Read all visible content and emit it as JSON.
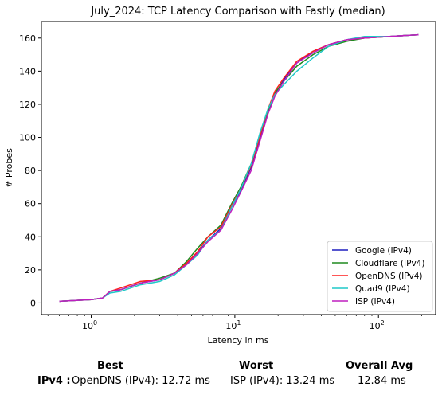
{
  "chart_data": {
    "type": "line",
    "title": "July_2024: TCP Latency Comparison with Fastly (median)",
    "xlabel": "Latency in ms",
    "ylabel": "# Probes",
    "xscale": "log",
    "xlim": [
      0.45,
      250
    ],
    "ylim": [
      -7,
      170
    ],
    "xticks": [
      {
        "value": 1,
        "label": "10^0"
      },
      {
        "value": 10,
        "label": "10^1"
      },
      {
        "value": 100,
        "label": "10^2"
      }
    ],
    "yticks": [
      0,
      20,
      40,
      60,
      80,
      100,
      120,
      140,
      160
    ],
    "grid": false,
    "legend_position": "lower-right",
    "series": [
      {
        "name": "Google (IPv4)",
        "color": "#1f1fbf",
        "points": [
          [
            0.6,
            1
          ],
          [
            1.0,
            2
          ],
          [
            1.2,
            3
          ],
          [
            1.35,
            7
          ],
          [
            1.6,
            8
          ],
          [
            2.2,
            12
          ],
          [
            3.0,
            14
          ],
          [
            3.8,
            18
          ],
          [
            4.6,
            24
          ],
          [
            5.5,
            30
          ],
          [
            6.5,
            38
          ],
          [
            8.0,
            45
          ],
          [
            9.5,
            58
          ],
          [
            11,
            68
          ],
          [
            13,
            82
          ],
          [
            15,
            100
          ],
          [
            17,
            115
          ],
          [
            19,
            126
          ],
          [
            22,
            135
          ],
          [
            27,
            145
          ],
          [
            35,
            152
          ],
          [
            45,
            156
          ],
          [
            60,
            159
          ],
          [
            80,
            160
          ],
          [
            120,
            161
          ],
          [
            190,
            162
          ]
        ]
      },
      {
        "name": "Cloudflare (IPv4)",
        "color": "#1f8a1f",
        "points": [
          [
            0.6,
            1
          ],
          [
            1.0,
            2
          ],
          [
            1.2,
            3
          ],
          [
            1.35,
            7
          ],
          [
            1.6,
            8
          ],
          [
            2.2,
            12
          ],
          [
            3.0,
            15
          ],
          [
            3.8,
            18
          ],
          [
            4.6,
            25
          ],
          [
            5.5,
            33
          ],
          [
            6.5,
            40
          ],
          [
            8.0,
            47
          ],
          [
            9.5,
            60
          ],
          [
            11,
            70
          ],
          [
            13,
            84
          ],
          [
            15,
            102
          ],
          [
            17,
            116
          ],
          [
            19,
            127
          ],
          [
            22,
            134
          ],
          [
            27,
            143
          ],
          [
            35,
            150
          ],
          [
            45,
            155
          ],
          [
            60,
            158
          ],
          [
            80,
            160
          ],
          [
            120,
            161
          ],
          [
            190,
            162
          ]
        ]
      },
      {
        "name": "OpenDNS (IPv4)",
        "color": "#ff1f1f",
        "points": [
          [
            0.6,
            1
          ],
          [
            1.0,
            2
          ],
          [
            1.2,
            3
          ],
          [
            1.35,
            7
          ],
          [
            1.6,
            9
          ],
          [
            2.2,
            13
          ],
          [
            3.0,
            14
          ],
          [
            3.8,
            18
          ],
          [
            4.6,
            24
          ],
          [
            5.5,
            31
          ],
          [
            6.5,
            40
          ],
          [
            8.0,
            46
          ],
          [
            9.5,
            59
          ],
          [
            11,
            69
          ],
          [
            13,
            83
          ],
          [
            15,
            101
          ],
          [
            17,
            117
          ],
          [
            19,
            128
          ],
          [
            22,
            136
          ],
          [
            27,
            146
          ],
          [
            35,
            152
          ],
          [
            45,
            156
          ],
          [
            60,
            159
          ],
          [
            80,
            160
          ],
          [
            120,
            161
          ],
          [
            190,
            162
          ]
        ]
      },
      {
        "name": "Quad9 (IPv4)",
        "color": "#1fc8c8",
        "points": [
          [
            0.6,
            1
          ],
          [
            1.0,
            2
          ],
          [
            1.2,
            3
          ],
          [
            1.35,
            6
          ],
          [
            1.6,
            7
          ],
          [
            2.2,
            11
          ],
          [
            3.0,
            13
          ],
          [
            3.8,
            17
          ],
          [
            4.6,
            23
          ],
          [
            5.5,
            29
          ],
          [
            6.5,
            38
          ],
          [
            8.0,
            44
          ],
          [
            9.5,
            58
          ],
          [
            11,
            69
          ],
          [
            13,
            84
          ],
          [
            15,
            103
          ],
          [
            17,
            117
          ],
          [
            19,
            126
          ],
          [
            22,
            132
          ],
          [
            27,
            140
          ],
          [
            35,
            148
          ],
          [
            45,
            155
          ],
          [
            60,
            159
          ],
          [
            80,
            161
          ],
          [
            120,
            161
          ],
          [
            190,
            162
          ]
        ]
      },
      {
        "name": "ISP (IPv4)",
        "color": "#bf1fbf",
        "points": [
          [
            0.6,
            1
          ],
          [
            1.0,
            2
          ],
          [
            1.2,
            3
          ],
          [
            1.35,
            7
          ],
          [
            1.6,
            8
          ],
          [
            2.2,
            12
          ],
          [
            3.0,
            14
          ],
          [
            3.8,
            18
          ],
          [
            4.6,
            23
          ],
          [
            5.5,
            30
          ],
          [
            6.5,
            37
          ],
          [
            8.0,
            44
          ],
          [
            9.5,
            56
          ],
          [
            11,
            67
          ],
          [
            13,
            80
          ],
          [
            15,
            98
          ],
          [
            17,
            114
          ],
          [
            19,
            125
          ],
          [
            22,
            134
          ],
          [
            27,
            145
          ],
          [
            35,
            151
          ],
          [
            45,
            156
          ],
          [
            60,
            159
          ],
          [
            80,
            160
          ],
          [
            120,
            161
          ],
          [
            190,
            162
          ]
        ]
      }
    ]
  },
  "summary": {
    "best_label": "Best",
    "worst_label": "Worst",
    "avg_label": "Overall Avg",
    "row_label": "IPv4 :",
    "best_value": "OpenDNS (IPv4): 12.72 ms",
    "worst_value": "ISP (IPv4): 13.24 ms",
    "avg_value": "12.84 ms"
  }
}
